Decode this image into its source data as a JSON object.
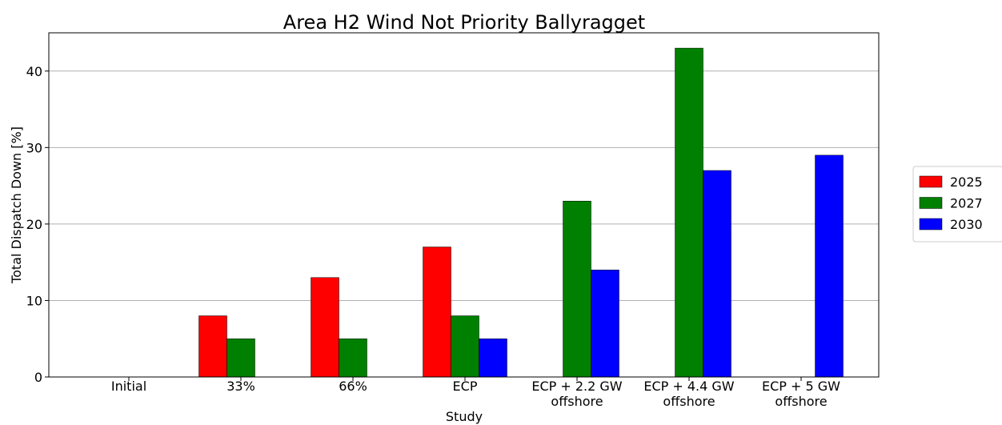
{
  "chart_data": {
    "type": "bar",
    "title": "Area H2 Wind Not Priority Ballyragget",
    "x_label": "Study",
    "y_label": "Total Dispatch Down [%]",
    "categories": [
      "Initial",
      "33%",
      "66%",
      "ECP",
      "ECP + 2.2 GW\noffshore",
      "ECP + 4.4 GW\noffshore",
      "ECP + 5 GW\noffshore"
    ],
    "series": [
      {
        "name": "2025",
        "color": "#ff0000",
        "values": [
          0,
          8,
          13,
          17,
          0,
          0,
          0
        ]
      },
      {
        "name": "2027",
        "color": "#008000",
        "values": [
          0,
          5,
          5,
          8,
          23,
          43,
          0
        ]
      },
      {
        "name": "2030",
        "color": "#0000ff",
        "values": [
          0,
          0,
          0,
          5,
          14,
          27,
          29
        ]
      }
    ],
    "ylim": [
      0,
      45
    ],
    "yticks": [
      0,
      10,
      20,
      30,
      40
    ],
    "grid": true,
    "legend": "right"
  }
}
